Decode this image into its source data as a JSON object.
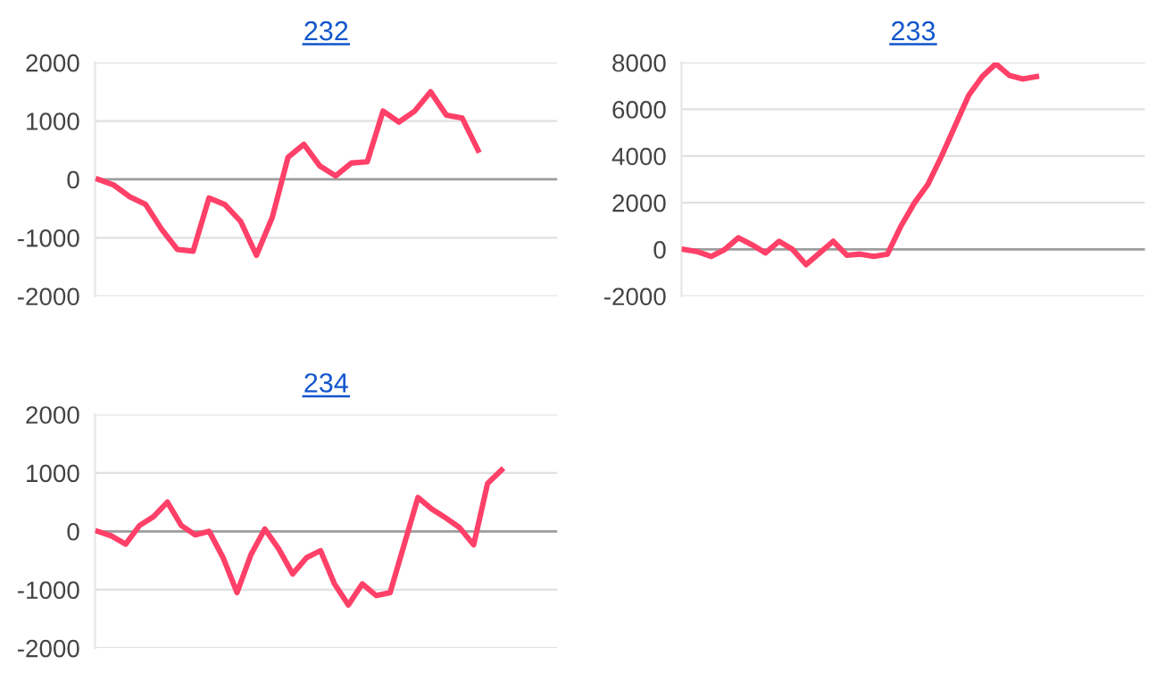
{
  "chart_data": [
    {
      "type": "line",
      "title": "232",
      "categories": [
        null,
        null,
        null,
        null,
        null,
        null,
        null,
        null,
        null,
        null,
        null,
        null,
        null,
        null,
        null,
        null,
        null,
        null,
        null,
        null,
        null,
        null,
        null,
        null,
        null,
        null,
        null,
        null,
        null,
        null
      ],
      "series": [
        {
          "color": "#ff4068",
          "values": [
            0,
            -100,
            -300,
            -430,
            -850,
            -1200,
            -1230,
            -320,
            -430,
            -720,
            -1300,
            -650,
            380,
            600,
            230,
            60,
            280,
            300,
            1170,
            980,
            1170,
            1500,
            1100,
            1050,
            500,
            null,
            null,
            null,
            null,
            null
          ]
        }
      ],
      "ylim": [
        -2000,
        2000
      ],
      "yticks": [
        -2000,
        -1000,
        0,
        1000,
        2000
      ],
      "grid": "y",
      "ref_lines": [
        {
          "axis": "y",
          "value": 0,
          "color": "#9e9e9e"
        }
      ],
      "tick_labels": "y",
      "legend": false,
      "marker": "none",
      "line_style": "solid"
    },
    {
      "type": "line",
      "title": "233",
      "categories": [
        null,
        null,
        null,
        null,
        null,
        null,
        null,
        null,
        null,
        null,
        null,
        null,
        null,
        null,
        null,
        null,
        null,
        null,
        null,
        null,
        null,
        null,
        null,
        null,
        null,
        null,
        null,
        null,
        null,
        null,
        null,
        null,
        null,
        null,
        null
      ],
      "series": [
        {
          "color": "#ff4068",
          "values": [
            0,
            -100,
            -300,
            0,
            500,
            200,
            -150,
            350,
            0,
            -650,
            -150,
            350,
            -250,
            -200,
            -300,
            -200,
            1000,
            2000,
            2800,
            4000,
            5300,
            6600,
            7400,
            7950,
            7450,
            7300,
            7400,
            null,
            null,
            null,
            null,
            null,
            null,
            null,
            null
          ]
        }
      ],
      "ylim": [
        -2000,
        8000
      ],
      "yticks": [
        -2000,
        0,
        2000,
        4000,
        6000,
        8000
      ],
      "grid": "y",
      "ref_lines": [
        {
          "axis": "y",
          "value": 0,
          "color": "#9e9e9e"
        }
      ],
      "tick_labels": "y",
      "legend": false,
      "marker": "none",
      "line_style": "solid"
    },
    {
      "type": "line",
      "title": "234",
      "categories": [
        null,
        null,
        null,
        null,
        null,
        null,
        null,
        null,
        null,
        null,
        null,
        null,
        null,
        null,
        null,
        null,
        null,
        null,
        null,
        null,
        null,
        null,
        null,
        null,
        null,
        null,
        null,
        null,
        null,
        null,
        null,
        null,
        null,
        null
      ],
      "series": [
        {
          "color": "#ff4068",
          "values": [
            0,
            -80,
            -220,
            100,
            250,
            500,
            100,
            -60,
            0,
            -450,
            -1050,
            -400,
            40,
            -300,
            -730,
            -450,
            -330,
            -900,
            -1260,
            -900,
            -1100,
            -1050,
            -235,
            580,
            380,
            230,
            60,
            -230,
            820,
            1050,
            null,
            null,
            null,
            null
          ]
        }
      ],
      "ylim": [
        -2000,
        2000
      ],
      "yticks": [
        -2000,
        -1000,
        0,
        1000,
        2000
      ],
      "grid": "y",
      "ref_lines": [
        {
          "axis": "y",
          "value": 0,
          "color": "#9e9e9e"
        }
      ],
      "tick_labels": "y",
      "legend": false,
      "marker": "none",
      "line_style": "solid"
    }
  ]
}
